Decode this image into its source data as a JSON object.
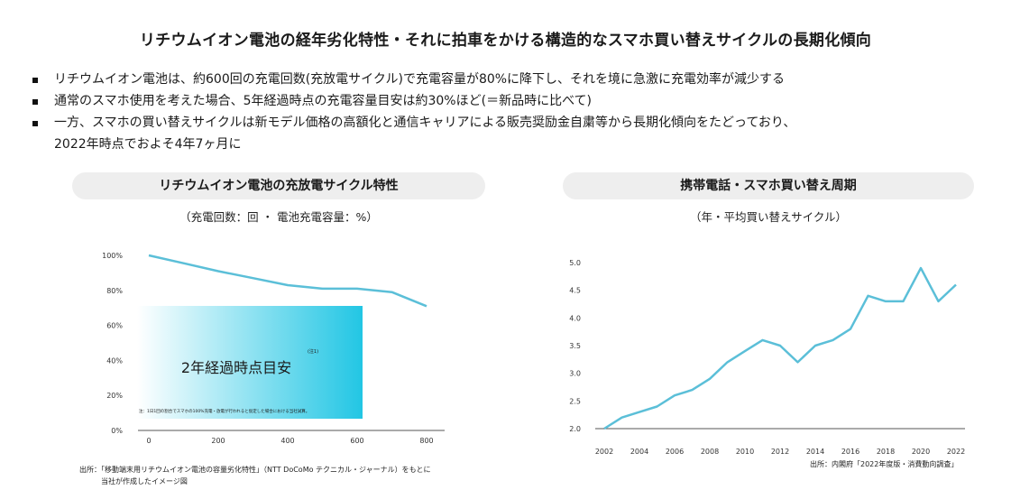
{
  "title": "リチウムイオン電池の経年劣化特性・それに拍車をかける構造的なスマホ買い替えサイクルの長期化傾向",
  "bullets": [
    "リチウムイオン電池は、約600回の充電回数(充放電サイクル)で充電容量が80%に降下し、それを境に急激に充電効率が減少する",
    "通常のスマホ使用を考えた場合、5年経過時点の充電容量目安は約30%ほど(＝新品時に比べて)",
    "一方、スマホの買い替えサイクルは新モデル価格の高額化と通信キャリアによる販売奨励金自粛等から長期化傾向をたどっており、",
    "2022年時点でおよそ4年7ヶ月に"
  ],
  "left_panel": {
    "header": "リチウムイオン電池の充放電サイクル特性",
    "subtitle": "（充電回数：回 ・ 電池充電容量：%）",
    "overlay_label": "2年経過時点目安",
    "overlay_note_mark": "(注1)",
    "overlay_footnote": "注：1日1回の割合でスマホの100%充電・放電が行われると仮定した場合における当社試算。",
    "source_line1": "出所：「移動端末用リチウムイオン電池の容量劣化特性」（NTT DoCoMo テクニカル・ジャーナル）をもとに",
    "source_line2": "当社が作成したイメージ図"
  },
  "right_panel": {
    "header": "携帯電話・スマホ買い替え周期",
    "subtitle": "（年・平均買い替えサイクル）",
    "source": "出所：内閣府「2022年度版・消費動向調査」"
  },
  "chart_data": [
    {
      "type": "line",
      "x": [
        0,
        100,
        200,
        300,
        400,
        500,
        600,
        700,
        800
      ],
      "values": [
        100,
        95.5,
        91,
        87,
        83,
        81,
        81,
        79,
        71
      ],
      "xticks": [
        "0",
        "200",
        "400",
        "600",
        "800"
      ],
      "yticks": [
        "0%",
        "20%",
        "40%",
        "60%",
        "80%",
        "100%"
      ],
      "xlim": [
        0,
        800
      ],
      "ylim": [
        0,
        100
      ],
      "line_color": "#5bbfd8"
    },
    {
      "type": "line",
      "x": [
        2002,
        2003,
        2004,
        2005,
        2006,
        2007,
        2008,
        2009,
        2010,
        2011,
        2012,
        2013,
        2014,
        2015,
        2016,
        2017,
        2018,
        2019,
        2020,
        2021,
        2022
      ],
      "values": [
        2.0,
        2.2,
        2.3,
        2.4,
        2.6,
        2.7,
        2.9,
        3.2,
        3.4,
        3.6,
        3.5,
        3.2,
        3.5,
        3.6,
        3.8,
        4.4,
        4.3,
        4.3,
        4.9,
        4.3,
        4.6
      ],
      "xticks": [
        "2002",
        "2004",
        "2006",
        "2008",
        "2010",
        "2012",
        "2014",
        "2016",
        "2018",
        "2020",
        "2022"
      ],
      "yticks": [
        "2.0",
        "2.5",
        "3.0",
        "3.5",
        "4.0",
        "4.5",
        "5.0"
      ],
      "xlim": [
        2002,
        2022
      ],
      "ylim": [
        2.0,
        5.0
      ],
      "line_color": "#5bbfd8"
    }
  ]
}
